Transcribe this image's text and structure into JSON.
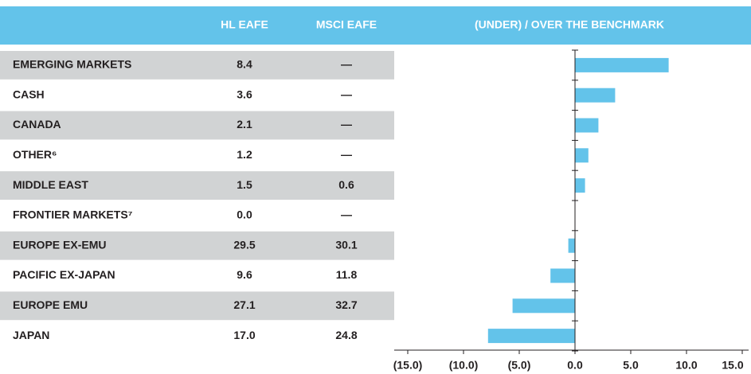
{
  "table": {
    "columns": [
      "HL EAFE",
      "MSCI EAFE"
    ],
    "rows": [
      [
        "EMERGING MARKETS",
        "8.4",
        "—"
      ],
      [
        "CASH",
        "3.6",
        "—"
      ],
      [
        "CANADA",
        "2.1",
        "—"
      ],
      [
        "OTHER⁶",
        "1.2",
        "—"
      ],
      [
        "MIDDLE EAST",
        "1.5",
        "0.6"
      ],
      [
        "FRONTIER MARKETS⁷",
        "0.0",
        "—"
      ],
      [
        "EUROPE EX-EMU",
        "29.5",
        "30.1"
      ],
      [
        "PACIFIC EX-JAPAN",
        "9.6",
        "11.8"
      ],
      [
        "EUROPE EMU",
        "27.1",
        "32.7"
      ],
      [
        "JAPAN",
        "17.0",
        "24.8"
      ]
    ]
  },
  "chart_data": {
    "type": "bar",
    "orientation": "horizontal",
    "title": "(UNDER) / OVER THE BENCHMARK",
    "values": [
      8.4,
      3.6,
      2.1,
      1.2,
      0.9,
      0.0,
      -0.6,
      -2.2,
      -5.6,
      -7.8
    ],
    "color": "#63c3ea",
    "xlim": [
      -15,
      15
    ],
    "xticks": [
      {
        "value": -15,
        "label": "(15.0)"
      },
      {
        "value": -10,
        "label": "(10.0)"
      },
      {
        "value": -5,
        "label": "(5.0)"
      },
      {
        "value": 0,
        "label": "0.0"
      },
      {
        "value": 5,
        "label": "5.0"
      },
      {
        "value": 10,
        "label": "10.0"
      },
      {
        "value": 15,
        "label": "15.0"
      }
    ]
  }
}
